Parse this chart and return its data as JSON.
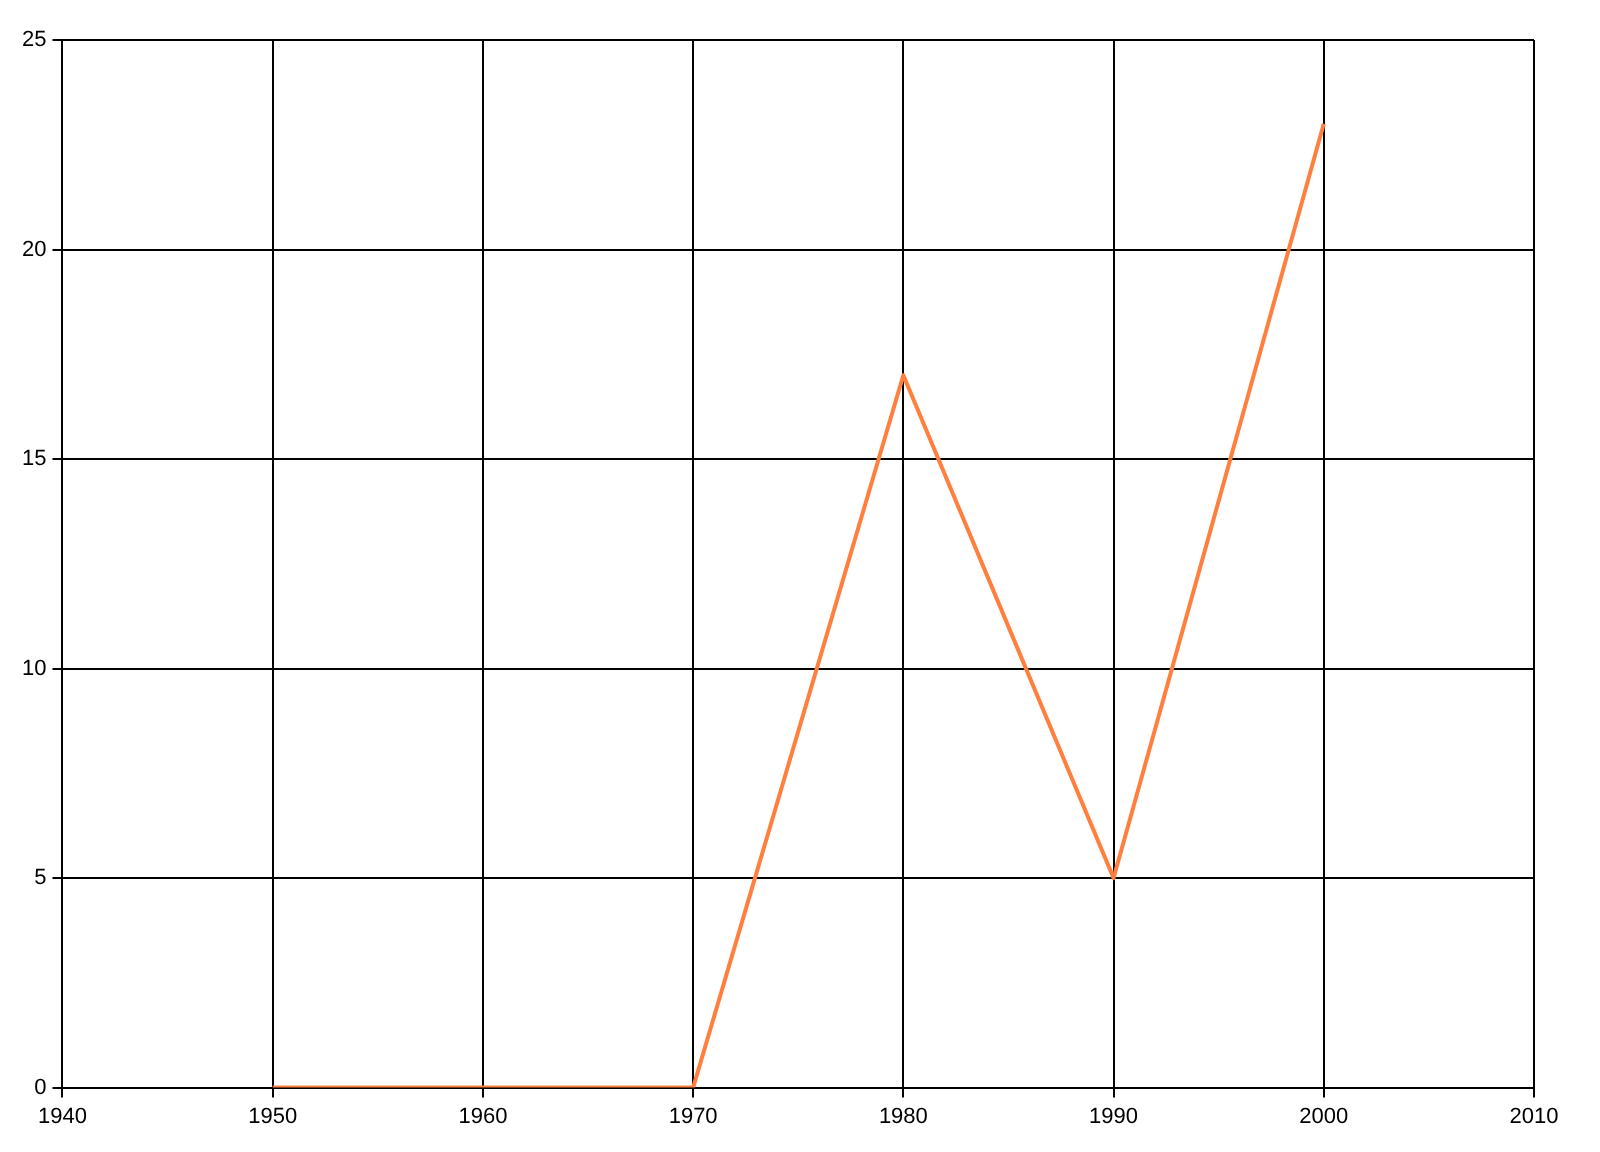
{
  "chart_data": {
    "type": "line",
    "x": [
      1950,
      1960,
      1970,
      1980,
      1990,
      2000
    ],
    "series": [
      {
        "color": "#ff7f3f",
        "values": [
          0,
          0,
          0,
          17,
          5,
          23
        ]
      }
    ],
    "xlim": [
      1940,
      2010
    ],
    "xticks": [
      1940,
      1950,
      1960,
      1970,
      1980,
      1990,
      2000,
      2010
    ],
    "ylim": [
      0,
      25
    ],
    "yticks": [
      0,
      5,
      10,
      15,
      20,
      25
    ],
    "grid": true,
    "legend": false,
    "marker": "none",
    "line_style": "solid"
  }
}
